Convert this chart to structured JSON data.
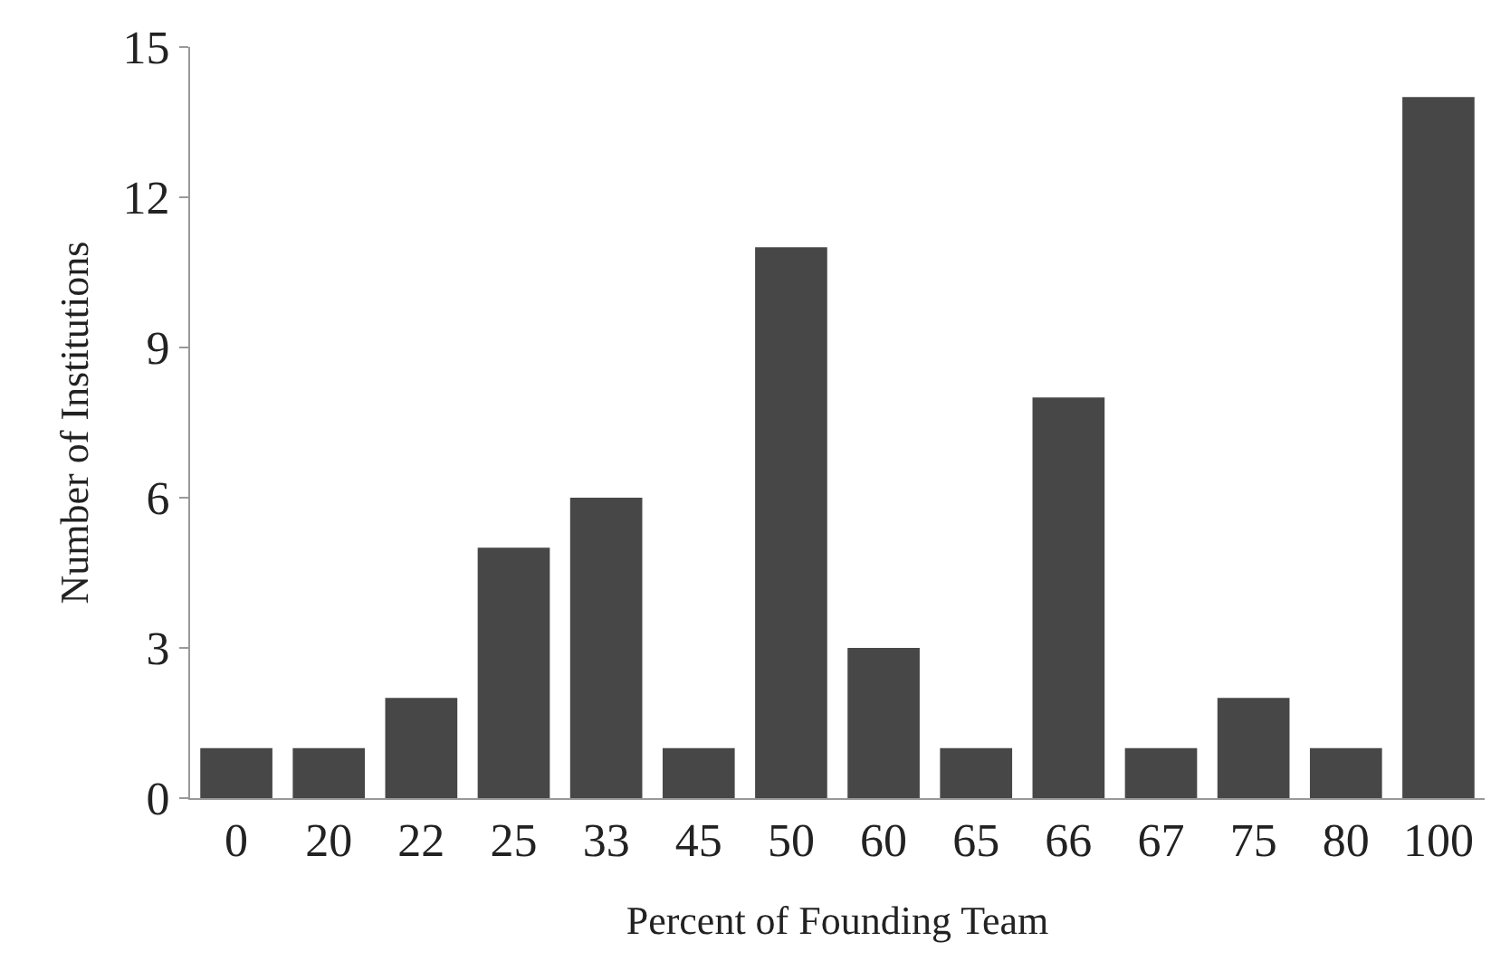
{
  "chart_data": {
    "type": "bar",
    "xlabel": "Percent of Founding Team",
    "ylabel": "Number of Institutions",
    "categories": [
      "0",
      "20",
      "22",
      "25",
      "33",
      "45",
      "50",
      "60",
      "65",
      "66",
      "67",
      "75",
      "80",
      "100"
    ],
    "values": [
      1,
      1,
      2,
      5,
      6,
      1,
      11,
      3,
      1,
      8,
      1,
      2,
      1,
      14
    ],
    "color": "#474747",
    "ylim": [
      0,
      15
    ],
    "yticks": [
      0,
      3,
      6,
      9,
      12,
      15
    ]
  }
}
